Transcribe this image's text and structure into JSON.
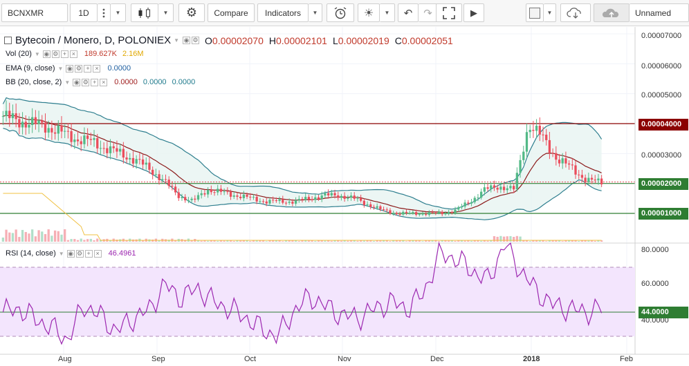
{
  "toolbar": {
    "symbol": "BCNXMR",
    "interval": "1D",
    "compare_label": "Compare",
    "indicators_label": "Indicators",
    "layout_name": "Unnamed"
  },
  "legend": {
    "title": "Bytecoin / Monero, D, POLONIEX",
    "open_label": "O",
    "open": "0.00002070",
    "high_label": "H",
    "high": "0.00002101",
    "low_label": "L",
    "low": "0.00002019",
    "close_label": "C",
    "close": "0.00002051",
    "vol_name": "Vol (20)",
    "vol_value": "189.627K",
    "vol_ma": "2.16M",
    "ema_name": "EMA (9, close)",
    "ema_value": "0.0000",
    "bb_name": "BB (20, close, 2)",
    "bb_basis": "0.0000",
    "bb_upper": "0.0000",
    "bb_lower": "0.0000",
    "rsi_name": "RSI (14, close)",
    "rsi_value": "46.4961"
  },
  "price_axis": {
    "ticks": [
      "0.00007000",
      "0.00006000",
      "0.00005000",
      "0.00003000",
      "0.00001000"
    ],
    "highlight_4": "0.00004000",
    "highlight_2": "0.00002000",
    "highlight_1": "0.00001000"
  },
  "rsi_axis": {
    "ticks": [
      "80.0000",
      "60.0000",
      "40.0000"
    ],
    "highlight": "44.0000"
  },
  "time_axis": [
    "Aug",
    "Sep",
    "Oct",
    "Nov",
    "Dec",
    "2018",
    "Feb"
  ],
  "colors": {
    "up": "#53b987",
    "down": "#eb4d5c",
    "bb_band": "#2d7e8e",
    "bb_fill": "#e7f4f1",
    "ema": "#8b1a1a",
    "level_red": "#8b0000",
    "level_green": "#2e7d32",
    "rsi": "#9c27b0",
    "rsi_fill": "#f3e5fd",
    "price_box": "#c0392b"
  },
  "chart_data": {
    "type": "candlestick",
    "title": "Bytecoin / Monero, D, POLONIEX",
    "y_range": [
      0,
      7.5e-05
    ],
    "rsi_range": [
      20,
      85
    ],
    "horizontal_levels": [
      4e-05,
      2e-05,
      1e-05
    ],
    "rsi_levels": [
      70,
      30,
      44
    ],
    "x_ticks": [
      "Aug",
      "Sep",
      "Oct",
      "Nov",
      "Dec",
      "2018",
      "Feb"
    ],
    "close_series_approx": [
      4.25e-05,
      4.1e-05,
      4e-05,
      3.9e-05,
      3.7e-05,
      3.5e-05,
      3.4e-05,
      3.2e-05,
      3e-05,
      2.8e-05,
      2.5e-05,
      2.1e-05,
      1.6e-05,
      1.4e-05,
      1.8e-05,
      1.7e-05,
      1.6e-05,
      1.5e-05,
      1.4e-05,
      1.4e-05,
      1.4e-05,
      1.5e-05,
      1.6e-05,
      1.6e-05,
      1.5e-05,
      1.3e-05,
      1.1e-05,
      1e-05,
      1e-05,
      1e-05,
      1e-05,
      1.1e-05,
      1.4e-05,
      1.8e-05,
      1.9e-05,
      1.8e-05,
      4e-05,
      3.5e-05,
      2.8e-05,
      2.5e-05,
      2.1e-05,
      2.05e-05
    ],
    "rsi_series_approx": [
      44,
      46,
      40,
      35,
      28,
      48,
      42,
      33,
      40,
      45,
      60,
      52,
      58,
      50,
      46,
      41,
      34,
      30,
      45,
      53,
      47,
      42,
      41,
      46,
      50,
      46,
      55,
      78,
      75,
      68,
      62,
      84,
      68,
      56,
      48,
      46,
      44,
      46
    ]
  }
}
